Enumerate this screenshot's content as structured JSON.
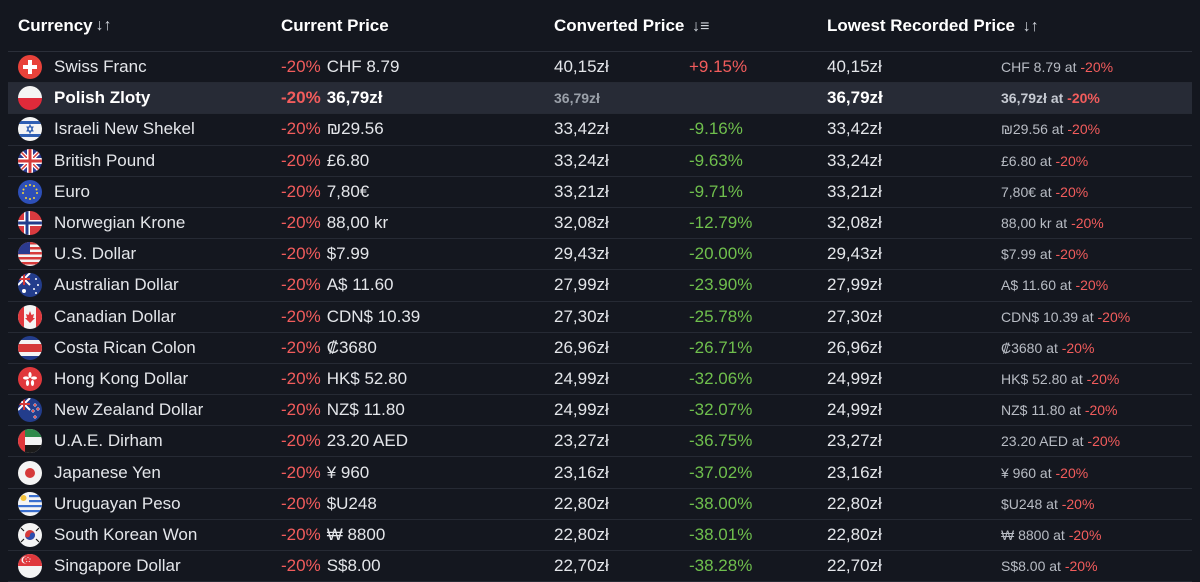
{
  "headers": {
    "currency": "Currency",
    "current": "Current Price",
    "converted": "Converted Price",
    "lowest": "Lowest Recorded Price",
    "sort_icon": "↓↑",
    "sort_desc_icon": "↓≡"
  },
  "rows": [
    {
      "flag": "ch",
      "name": "Swiss Franc",
      "discount": "-20%",
      "price": "CHF 8.79",
      "converted": "40,15zł",
      "diff": "+9.15%",
      "lowest": "40,15zł",
      "lowest_price": "CHF 8.79",
      "at": " at ",
      "lowest_discount": "-20%"
    },
    {
      "flag": "pl",
      "name": "Polish Zloty",
      "discount": "-20%",
      "price": "36,79zł",
      "converted": "36,79zł",
      "diff": "",
      "lowest": "36,79zł",
      "lowest_price": "36,79zł",
      "at": " at ",
      "lowest_discount": "-20%"
    },
    {
      "flag": "il",
      "name": "Israeli New Shekel",
      "discount": "-20%",
      "price": "₪29.56",
      "converted": "33,42zł",
      "diff": "-9.16%",
      "lowest": "33,42zł",
      "lowest_price": "₪29.56",
      "at": " at ",
      "lowest_discount": "-20%"
    },
    {
      "flag": "gb",
      "name": "British Pound",
      "discount": "-20%",
      "price": "£6.80",
      "converted": "33,24zł",
      "diff": "-9.63%",
      "lowest": "33,24zł",
      "lowest_price": "£6.80",
      "at": " at ",
      "lowest_discount": "-20%"
    },
    {
      "flag": "eu",
      "name": "Euro",
      "discount": "-20%",
      "price": "7,80€",
      "converted": "33,21zł",
      "diff": "-9.71%",
      "lowest": "33,21zł",
      "lowest_price": "7,80€",
      "at": " at ",
      "lowest_discount": "-20%"
    },
    {
      "flag": "no",
      "name": "Norwegian Krone",
      "discount": "-20%",
      "price": "88,00 kr",
      "converted": "32,08zł",
      "diff": "-12.79%",
      "lowest": "32,08zł",
      "lowest_price": "88,00 kr",
      "at": " at ",
      "lowest_discount": "-20%"
    },
    {
      "flag": "us",
      "name": "U.S. Dollar",
      "discount": "-20%",
      "price": "$7.99",
      "converted": "29,43zł",
      "diff": "-20.00%",
      "lowest": "29,43zł",
      "lowest_price": "$7.99",
      "at": " at ",
      "lowest_discount": "-20%"
    },
    {
      "flag": "au",
      "name": "Australian Dollar",
      "discount": "-20%",
      "price": "A$ 11.60",
      "converted": "27,99zł",
      "diff": "-23.90%",
      "lowest": "27,99zł",
      "lowest_price": "A$ 11.60",
      "at": " at ",
      "lowest_discount": "-20%"
    },
    {
      "flag": "ca",
      "name": "Canadian Dollar",
      "discount": "-20%",
      "price": "CDN$ 10.39",
      "converted": "27,30zł",
      "diff": "-25.78%",
      "lowest": "27,30zł",
      "lowest_price": "CDN$ 10.39",
      "at": " at ",
      "lowest_discount": "-20%"
    },
    {
      "flag": "cr",
      "name": "Costa Rican Colon",
      "discount": "-20%",
      "price": "₡3680",
      "converted": "26,96zł",
      "diff": "-26.71%",
      "lowest": "26,96zł",
      "lowest_price": "₡3680",
      "at": " at ",
      "lowest_discount": "-20%"
    },
    {
      "flag": "hk",
      "name": "Hong Kong Dollar",
      "discount": "-20%",
      "price": "HK$ 52.80",
      "converted": "24,99zł",
      "diff": "-32.06%",
      "lowest": "24,99zł",
      "lowest_price": "HK$ 52.80",
      "at": " at ",
      "lowest_discount": "-20%"
    },
    {
      "flag": "nz",
      "name": "New Zealand Dollar",
      "discount": "-20%",
      "price": "NZ$ 11.80",
      "converted": "24,99zł",
      "diff": "-32.07%",
      "lowest": "24,99zł",
      "lowest_price": "NZ$ 11.80",
      "at": " at ",
      "lowest_discount": "-20%"
    },
    {
      "flag": "ae",
      "name": "U.A.E. Dirham",
      "discount": "-20%",
      "price": "23.20 AED",
      "converted": "23,27zł",
      "diff": "-36.75%",
      "lowest": "23,27zł",
      "lowest_price": "23.20 AED",
      "at": " at ",
      "lowest_discount": "-20%"
    },
    {
      "flag": "jp",
      "name": "Japanese Yen",
      "discount": "-20%",
      "price": "¥ 960",
      "converted": "23,16zł",
      "diff": "-37.02%",
      "lowest": "23,16zł",
      "lowest_price": "¥ 960",
      "at": " at ",
      "lowest_discount": "-20%"
    },
    {
      "flag": "uy",
      "name": "Uruguayan Peso",
      "discount": "-20%",
      "price": "$U248",
      "converted": "22,80zł",
      "diff": "-38.00%",
      "lowest": "22,80zł",
      "lowest_price": "$U248",
      "at": " at ",
      "lowest_discount": "-20%"
    },
    {
      "flag": "kr",
      "name": "South Korean Won",
      "discount": "-20%",
      "price": "₩ 8800",
      "converted": "22,80zł",
      "diff": "-38.01%",
      "lowest": "22,80zł",
      "lowest_price": "₩ 8800",
      "at": " at ",
      "lowest_discount": "-20%"
    },
    {
      "flag": "sg",
      "name": "Singapore Dollar",
      "discount": "-20%",
      "price": "S$8.00",
      "converted": "22,70zł",
      "diff": "-38.28%",
      "lowest": "22,70zł",
      "lowest_price": "S$8.00",
      "at": " at ",
      "lowest_discount": "-20%"
    }
  ],
  "highlight_row": 1,
  "colors": {
    "discount": "#f25c5c",
    "positive": "#6fbf4d",
    "background": "#14171f",
    "highlight": "#272b36"
  }
}
